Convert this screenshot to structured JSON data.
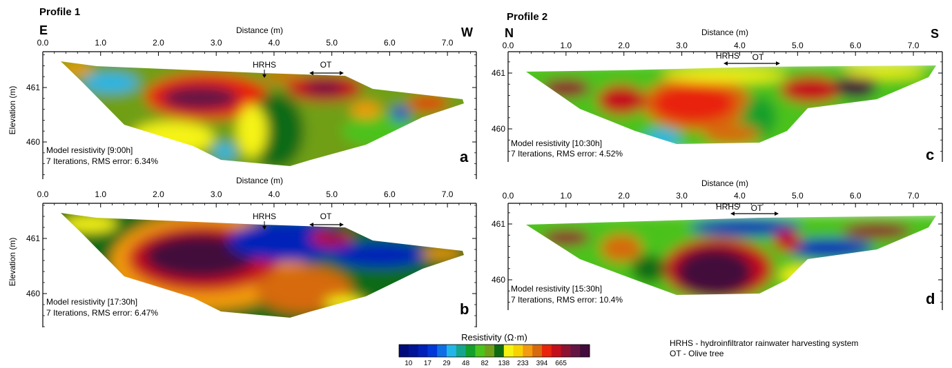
{
  "chart_data": [
    {
      "type": "heatmap",
      "panel": "a",
      "profile": "Profile 1",
      "left_dir": "E",
      "right_dir": "W",
      "xlabel": "Distance (m)",
      "ylabel": "Elevation (m)",
      "x_ticks": [
        "0.0",
        "1.0",
        "2.0",
        "3.0",
        "4.0",
        "5.0",
        "6.0",
        "7.0"
      ],
      "y_ticks": [
        "461",
        "460"
      ],
      "xlim": [
        0.0,
        7.5
      ],
      "ylim": [
        459.6,
        461.6
      ],
      "model_label": "Model resistivity [9:00h]",
      "iter_label": "7 Iterations, RMS error: 6.34%",
      "time": "9:00h",
      "iterations": 7,
      "rms_error_percent": 6.34,
      "annotations": [
        "HRHS",
        "OT"
      ],
      "hrhs_x": 4.0,
      "ot_range": [
        4.8,
        5.4
      ]
    },
    {
      "type": "heatmap",
      "panel": "b",
      "xlabel": "Distance (m)",
      "ylabel": "Elevation (m)",
      "x_ticks": [
        "0.0",
        "1.0",
        "2.0",
        "3.0",
        "4.0",
        "5.0",
        "6.0",
        "7.0"
      ],
      "y_ticks": [
        "461",
        "460"
      ],
      "xlim": [
        0.0,
        7.5
      ],
      "ylim": [
        459.6,
        461.6
      ],
      "model_label": "Model resistivity [17:30h]",
      "iter_label": "7 Iterations, RMS error: 6.47%",
      "time": "17:30h",
      "iterations": 7,
      "rms_error_percent": 6.47,
      "annotations": [
        "HRHS",
        "OT"
      ],
      "hrhs_x": 4.0,
      "ot_range": [
        4.8,
        5.4
      ]
    },
    {
      "type": "heatmap",
      "panel": "c",
      "profile": "Profile 2",
      "left_dir": "N",
      "right_dir": "S",
      "xlabel": "Distance (m)",
      "x_ticks": [
        "0.0",
        "1.0",
        "2.0",
        "3.0",
        "4.0",
        "5.0",
        "6.0",
        "7.0"
      ],
      "y_ticks": [
        "461",
        "460"
      ],
      "xlim": [
        0.0,
        7.5
      ],
      "ylim": [
        459.6,
        461.4
      ],
      "model_label": "Model resistivity [10:30h]",
      "iter_label": "7 Iterations, RMS error: 4.52%",
      "time": "10:30h",
      "iterations": 7,
      "rms_error_percent": 4.52,
      "annotations": [
        "HRHS",
        "OT"
      ],
      "hrhs_x": 4.0,
      "ot_range": [
        3.9,
        4.9
      ]
    },
    {
      "type": "heatmap",
      "panel": "d",
      "xlabel": "Distance (m)",
      "x_ticks": [
        "0.0",
        "1.0",
        "2.0",
        "3.0",
        "4.0",
        "5.0",
        "6.0",
        "7.0"
      ],
      "y_ticks": [
        "461",
        "460"
      ],
      "xlim": [
        0.0,
        7.5
      ],
      "ylim": [
        459.6,
        461.4
      ],
      "model_label": "Model resistivity [15:30h]",
      "iter_label": "7 Iterations, RMS error: 10.4%",
      "time": "15:30h",
      "iterations": 7,
      "rms_error_percent": 10.4,
      "annotations": [
        "HRHS",
        "OT"
      ],
      "hrhs_x": 4.0,
      "ot_range": [
        3.9,
        4.9
      ]
    }
  ],
  "colorbar": {
    "title": "Resistivity (Ω·m)",
    "tick_labels": [
      "10",
      "17",
      "29",
      "48",
      "82",
      "138",
      "233",
      "394",
      "665"
    ],
    "colors": [
      "#000b7a",
      "#001496",
      "#0020b8",
      "#0038d8",
      "#0e6ee6",
      "#22b6e8",
      "#15a58e",
      "#12a02a",
      "#4cc21c",
      "#6f9f18",
      "#0f6b12",
      "#f5f312",
      "#f7d100",
      "#f29a10",
      "#d66a0c",
      "#e8240c",
      "#c4101c",
      "#8e1330",
      "#651544",
      "#420c3a"
    ]
  },
  "legend": {
    "line1": "HRHS - hydroinfiltrator rainwater harvesting system",
    "line2": "OT - Olive tree"
  }
}
